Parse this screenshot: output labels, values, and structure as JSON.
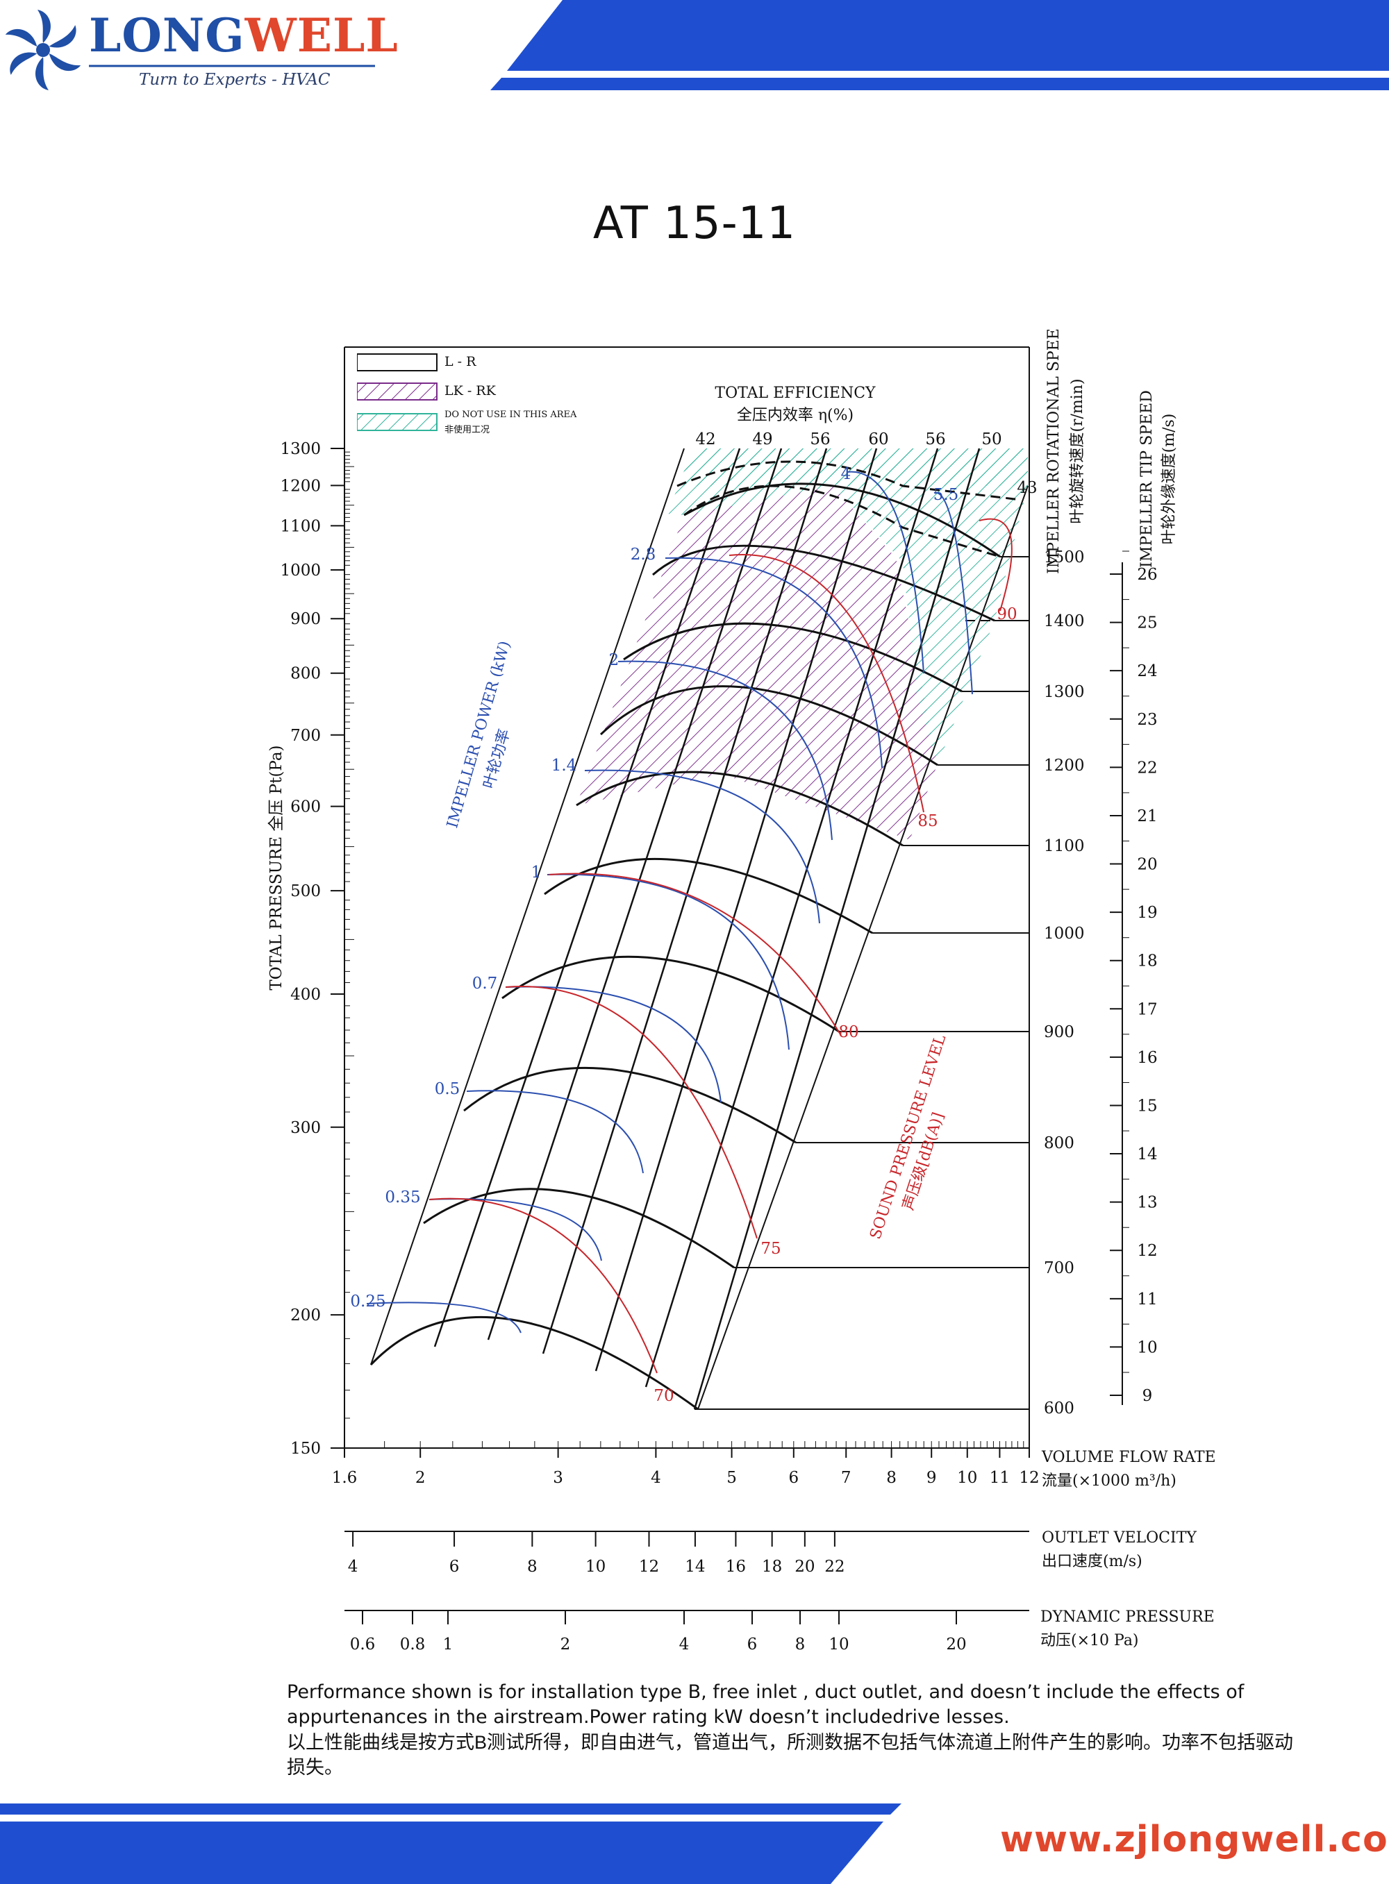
{
  "header": {
    "brand_part1": "LONG",
    "brand_part2": "WELL",
    "tagline": "Turn to Experts - HVAC",
    "brand_blue": "#1f4fa6",
    "brand_red": "#e0472c",
    "stripe_color": "#1f4fd0"
  },
  "footer": {
    "website": "www.zjlongwell.com"
  },
  "notes": {
    "english": "Performance shown is for installation type B, free inlet , duct outlet, and doesn’t include the effects of appurtenances in the airstream.Power rating kW doesn’t includedrive lesses.",
    "chinese": "以上性能曲线是按方式B测试所得，即自由进气，管道出气，所测数据不包括气体流道上附件产生的影响。功率不包括驱动损失。"
  },
  "chart_data": {
    "type": "line",
    "title": "AT  15-11",
    "x_axis": {
      "label_en": "VOLUME FLOW RATE",
      "label_cn": "流量(×1000 m³/h)",
      "scale": "log",
      "range": [
        1.6,
        12
      ],
      "ticks": [
        1.6,
        2,
        3,
        4,
        5,
        6,
        7,
        8,
        9,
        10,
        11,
        12
      ],
      "tick_labels": [
        "1.6",
        "2",
        "3",
        "4",
        "5",
        "6",
        "7",
        "8",
        "9",
        "10",
        "11",
        "12"
      ]
    },
    "y_axis": {
      "label": "TOTAL PRESSURE 全压 Pt(Pa)",
      "scale": "log",
      "range": [
        150,
        1300
      ],
      "ticks": [
        150,
        200,
        300,
        400,
        500,
        600,
        700,
        800,
        900,
        1000,
        1100,
        1200,
        1300
      ],
      "tick_labels": [
        "150",
        "200",
        "300",
        "400",
        "500",
        "600",
        "700",
        "800",
        "900",
        "1000",
        "1100",
        "1200",
        "1300"
      ]
    },
    "outlet_velocity": {
      "label_en": "OUTLET VELOCITY",
      "label_cn": "出口速度(m/s)",
      "ticks": [
        4,
        6,
        8,
        10,
        12,
        14,
        16,
        18,
        20,
        22
      ],
      "tick_labels": [
        "4",
        "6",
        "8",
        "10",
        "12",
        "14",
        "16",
        "18",
        "20",
        "22"
      ]
    },
    "dynamic_pressure": {
      "label_en": "DYNAMIC PRESSURE",
      "label_cn": "动压(×10 Pa)",
      "ticks": [
        0.6,
        0.8,
        1,
        2,
        4,
        6,
        8,
        10,
        20
      ],
      "tick_labels": [
        "0.6",
        "0.8",
        "1",
        "2",
        "4",
        "6",
        "8",
        "10",
        "20"
      ]
    },
    "rotational_speed": {
      "label_en": "IMPELLER ROTATIONAL SPEE",
      "label_cn": "叶轮旋转速度(r/min)",
      "values": [
        600,
        700,
        800,
        900,
        1000,
        1100,
        1200,
        1300,
        1400,
        1500
      ],
      "tick_labels": [
        "600",
        "700",
        "800",
        "900",
        "1000",
        "1100",
        "1200",
        "1300",
        "1400",
        "1500"
      ]
    },
    "tip_speed": {
      "label_en": "IMPELLER TIP SPEED",
      "label_cn": "叶轮外缘速度(m/s)",
      "values": [
        9,
        10,
        11,
        12,
        13,
        14,
        15,
        16,
        17,
        18,
        19,
        20,
        21,
        22,
        23,
        24,
        25,
        26
      ],
      "tick_labels": [
        "9",
        "10",
        "11",
        "12",
        "13",
        "14",
        "15",
        "16",
        "17",
        "18",
        "19",
        "20",
        "21",
        "22",
        "23",
        "24",
        "25",
        "26"
      ]
    },
    "efficiency": {
      "label_en": "TOTAL EFFICIENCY",
      "label_cn": "全压内效率  η(%)",
      "values": [
        42,
        49,
        56,
        60,
        56,
        50,
        43
      ],
      "tick_labels": [
        "42",
        "49",
        "56",
        "60",
        "56",
        "50",
        "43"
      ]
    },
    "power": {
      "label_en": "IMPELLER POWER (kW)",
      "label_cn": "叶轮功率",
      "labels": [
        "0.25",
        "0.35",
        "0.5",
        "0.7",
        "1",
        "1.4",
        "2",
        "2.8",
        "4",
        "5.5"
      ]
    },
    "sound": {
      "label_en": "SOUND PRESSURE LEVEL",
      "label_cn": "声压级[dB(A)]",
      "labels": [
        "70",
        "75",
        "80",
        "85",
        "90"
      ]
    },
    "legend": {
      "placement": "top-left",
      "items": [
        {
          "label": "L - R",
          "style": "plain"
        },
        {
          "label": "LK - RK",
          "style": "purple-hatch"
        },
        {
          "label": "DO NOT USE IN THIS AREA",
          "sublabel": "非使用工况",
          "style": "green-hatch"
        }
      ]
    },
    "speed_curves_n": [
      600,
      700,
      800,
      900,
      1000,
      1100,
      1200,
      1300,
      1400,
      1500
    ],
    "colors": {
      "power": "#2b4fb0",
      "sound": "#c8262b",
      "region_lkrk": "#7a2a8a",
      "region_noneuse": "#2fb39a"
    }
  }
}
